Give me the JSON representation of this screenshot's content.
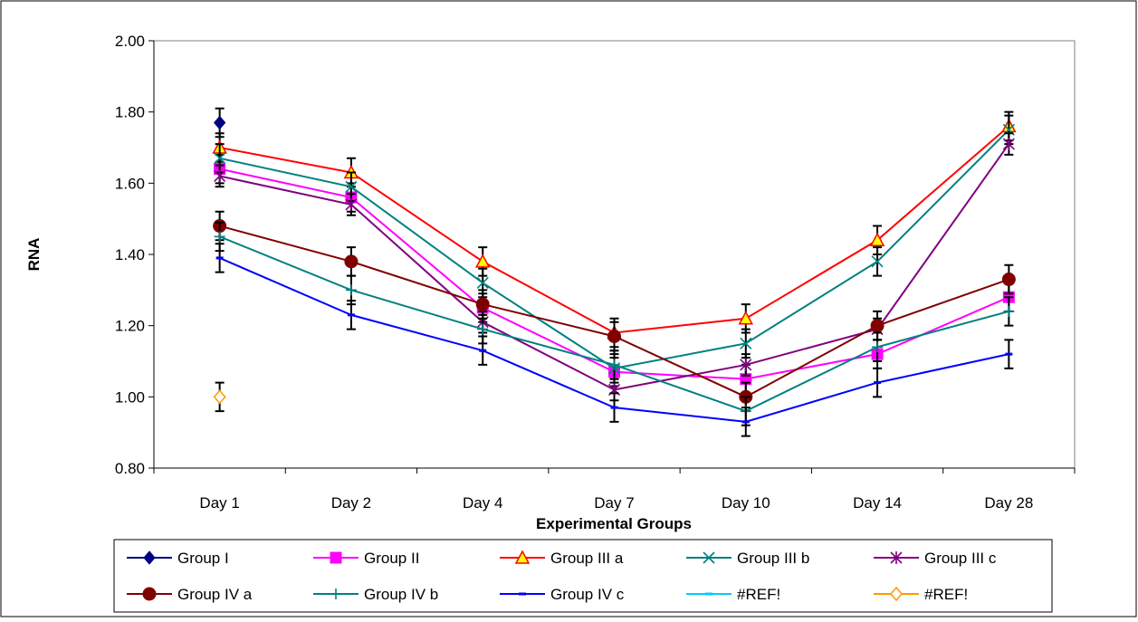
{
  "chart_data": {
    "type": "line",
    "title": "",
    "xlabel": "Experimental Groups",
    "ylabel": "RNA",
    "categories": [
      "Day 1",
      "Day 2",
      "Day 4",
      "Day 7",
      "Day 10",
      "Day 14",
      "Day 28"
    ],
    "ylim": [
      0.8,
      2.0
    ],
    "yticks": [
      "0.80",
      "1.00",
      "1.20",
      "1.40",
      "1.60",
      "1.80",
      "2.00"
    ],
    "grid": false,
    "legend_position": "bottom",
    "error_bars": true,
    "series": [
      {
        "name": "Group I",
        "color": "#000080",
        "marker": "diamond",
        "values": [
          1.77,
          null,
          null,
          null,
          null,
          null,
          null
        ],
        "errors": [
          0.04,
          null,
          null,
          null,
          null,
          null,
          null
        ]
      },
      {
        "name": "Group II",
        "color": "#ff00ff",
        "marker": "square",
        "values": [
          1.64,
          1.56,
          1.25,
          1.07,
          1.05,
          1.12,
          1.28
        ],
        "errors": [
          0.04,
          0.04,
          0.04,
          0.04,
          0.04,
          0.04,
          0.04
        ]
      },
      {
        "name": "Group III a",
        "color": "#ff0000",
        "marker": "triangle",
        "values": [
          1.7,
          1.63,
          1.38,
          1.18,
          1.22,
          1.44,
          1.76
        ],
        "errors": [
          0.04,
          0.04,
          0.04,
          0.04,
          0.04,
          0.04,
          0.04
        ]
      },
      {
        "name": "Group III b",
        "color": "#008080",
        "marker": "x",
        "values": [
          1.67,
          1.59,
          1.32,
          1.08,
          1.15,
          1.38,
          1.75
        ],
        "errors": [
          0.04,
          0.04,
          0.04,
          0.04,
          0.04,
          0.04,
          0.04
        ]
      },
      {
        "name": "Group III c",
        "color": "#800080",
        "marker": "star",
        "values": [
          1.62,
          1.54,
          1.21,
          1.02,
          1.09,
          1.19,
          1.71
        ],
        "errors": [
          0.03,
          0.03,
          0.03,
          0.03,
          0.03,
          0.03,
          0.03
        ]
      },
      {
        "name": "Group IV a",
        "color": "#800000",
        "marker": "circle",
        "values": [
          1.48,
          1.38,
          1.26,
          1.17,
          1.0,
          1.2,
          1.33
        ],
        "errors": [
          0.04,
          0.04,
          0.04,
          0.04,
          0.04,
          0.04,
          0.04
        ]
      },
      {
        "name": "Group IV b",
        "color": "#008080",
        "marker": "plus",
        "values": [
          1.45,
          1.3,
          1.19,
          1.09,
          0.96,
          1.14,
          1.24
        ],
        "errors": [
          0.04,
          0.04,
          0.04,
          0.04,
          0.04,
          0.04,
          0.04
        ]
      },
      {
        "name": "Group IV c",
        "color": "#0000ff",
        "marker": "dash",
        "values": [
          1.39,
          1.23,
          1.13,
          0.97,
          0.93,
          1.04,
          1.12
        ],
        "errors": [
          0.04,
          0.04,
          0.04,
          0.04,
          0.04,
          0.04,
          0.04
        ]
      },
      {
        "name": "#REF!",
        "color": "#00ccff",
        "marker": "dash",
        "values": [
          null,
          null,
          null,
          null,
          null,
          null,
          null
        ],
        "errors": [
          null,
          null,
          null,
          null,
          null,
          null,
          null
        ]
      },
      {
        "name": "#REF!",
        "color": "#ff9900",
        "marker": "open-diamond",
        "values": [
          1.0,
          null,
          null,
          null,
          null,
          null,
          null
        ],
        "errors": [
          0.04,
          null,
          null,
          null,
          null,
          null,
          null
        ]
      }
    ]
  }
}
